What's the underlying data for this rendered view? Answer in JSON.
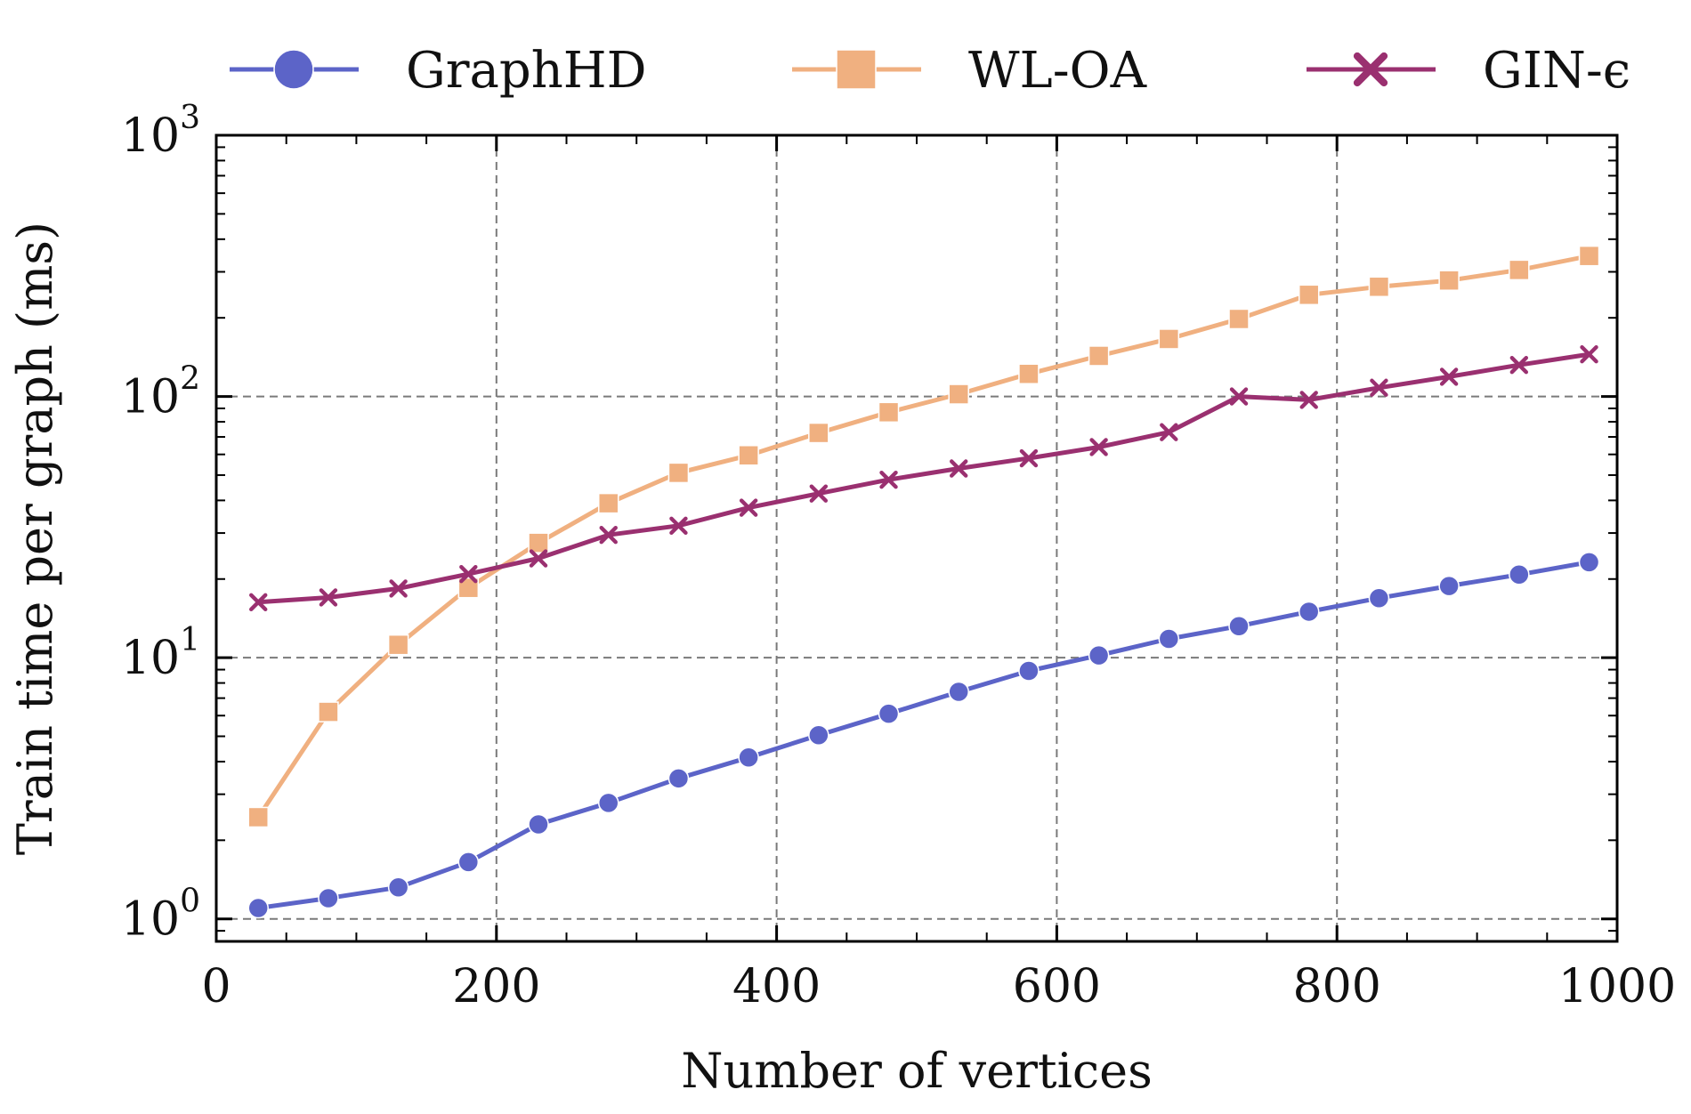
{
  "chart_data": {
    "type": "line",
    "title": "",
    "xlabel": "Number of vertices",
    "ylabel": "Train time per graph (ms)",
    "xlim": [
      0,
      1000
    ],
    "ylim": [
      0.82,
      1000
    ],
    "yscale": "log",
    "grid": true,
    "legend_position": "top",
    "x_ticks": [
      {
        "value": 0,
        "label": "0"
      },
      {
        "value": 200,
        "label": "200"
      },
      {
        "value": 400,
        "label": "400"
      },
      {
        "value": 600,
        "label": "600"
      },
      {
        "value": 800,
        "label": "800"
      },
      {
        "value": 1000,
        "label": "1000"
      }
    ],
    "y_ticks": [
      {
        "value": 1,
        "base": "10",
        "exp": "0"
      },
      {
        "value": 10,
        "base": "10",
        "exp": "1"
      },
      {
        "value": 100,
        "base": "10",
        "exp": "2"
      },
      {
        "value": 1000,
        "base": "10",
        "exp": "3"
      }
    ],
    "x": [
      30,
      80,
      130,
      180,
      230,
      280,
      330,
      380,
      430,
      480,
      530,
      580,
      630,
      680,
      730,
      780,
      830,
      880,
      930,
      980
    ],
    "series": [
      {
        "name": "GraphHD",
        "marker": "circle",
        "color": "#5c64c8",
        "values": [
          1.1,
          1.2,
          1.32,
          1.65,
          2.3,
          2.78,
          3.45,
          4.15,
          5.05,
          6.1,
          7.4,
          8.9,
          10.2,
          11.8,
          13.2,
          15.0,
          16.9,
          18.8,
          20.8,
          23.2
        ]
      },
      {
        "name": "WL-OA",
        "marker": "square",
        "color": "#f0b080",
        "values": [
          2.45,
          6.2,
          11.2,
          18.5,
          27.5,
          39.0,
          51.0,
          59.5,
          72.5,
          87.0,
          102.0,
          122.0,
          143.0,
          166.0,
          198.0,
          245.0,
          263.0,
          278.0,
          305.0,
          345.0
        ]
      },
      {
        "name": "GIN-ϵ",
        "marker": "x",
        "color": "#9a3070",
        "values": [
          16.3,
          17.0,
          18.4,
          20.9,
          24.0,
          29.5,
          32.0,
          37.5,
          42.5,
          48.0,
          53.0,
          58.0,
          64.0,
          73.0,
          100.0,
          97.0,
          108.0,
          119.0,
          132.0,
          145.0
        ]
      }
    ]
  }
}
